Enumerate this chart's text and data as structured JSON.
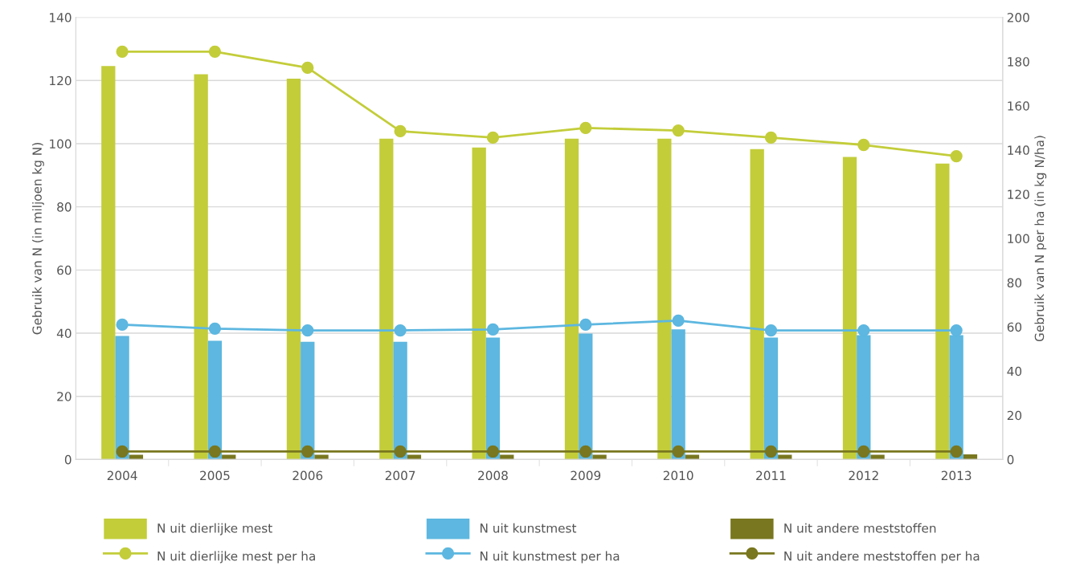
{
  "chart_data": {
    "type": "bar",
    "ylabel": "Gebruik van N (in miljoen kg N)",
    "y2label": "Gebruik van N per ha (in kg N/ha)",
    "categories": [
      "2004",
      "2005",
      "2006",
      "2007",
      "2008",
      "2009",
      "2010",
      "2011",
      "2012",
      "2013"
    ],
    "series": [
      {
        "name": "N uit dierlijke mest",
        "color": "#c3cd3a",
        "values": [
          124.6,
          122.0,
          120.6,
          101.6,
          98.8,
          101.6,
          101.6,
          98.3,
          95.8,
          93.7
        ]
      },
      {
        "name": "N uit kunstmest",
        "color": "#5db7e0",
        "values": [
          39.1,
          37.6,
          37.3,
          37.3,
          38.6,
          39.9,
          41.2,
          38.6,
          39.4,
          39.4
        ]
      },
      {
        "name": "N uit andere meststoffen",
        "color": "#79771f",
        "values": [
          1.5,
          1.5,
          1.5,
          1.5,
          1.5,
          1.5,
          1.5,
          1.5,
          1.5,
          1.6
        ]
      },
      {
        "name": "N uit dierlijke mest per ha",
        "type": "line",
        "axis": "y2",
        "color": "#c3cd3a",
        "values": [
          184.5,
          184.5,
          177.2,
          148.5,
          145.6,
          150.0,
          148.8,
          145.6,
          142.3,
          137.2
        ]
      },
      {
        "name": "N uit kunstmest per ha",
        "type": "line",
        "axis": "y2",
        "color": "#5db7e0",
        "values": [
          61.0,
          59.2,
          58.4,
          58.4,
          58.8,
          61.0,
          62.8,
          58.4,
          58.4,
          58.4
        ]
      },
      {
        "name": "N uit andere meststoffen per ha",
        "type": "line",
        "axis": "y2",
        "color": "#79771f",
        "values": [
          3.6,
          3.6,
          3.6,
          3.6,
          3.6,
          3.6,
          3.6,
          3.6,
          3.6,
          3.6
        ]
      }
    ],
    "ylim": [
      0,
      140
    ],
    "yticks": [
      0,
      20,
      40,
      60,
      80,
      100,
      120,
      140
    ],
    "y2lim": [
      0,
      200
    ],
    "y2ticks": [
      0,
      20,
      40,
      60,
      80,
      100,
      120,
      140,
      160,
      180,
      200
    ],
    "grid": "y",
    "legend": "bottom",
    "marker": "circle",
    "line_style": "solid"
  }
}
